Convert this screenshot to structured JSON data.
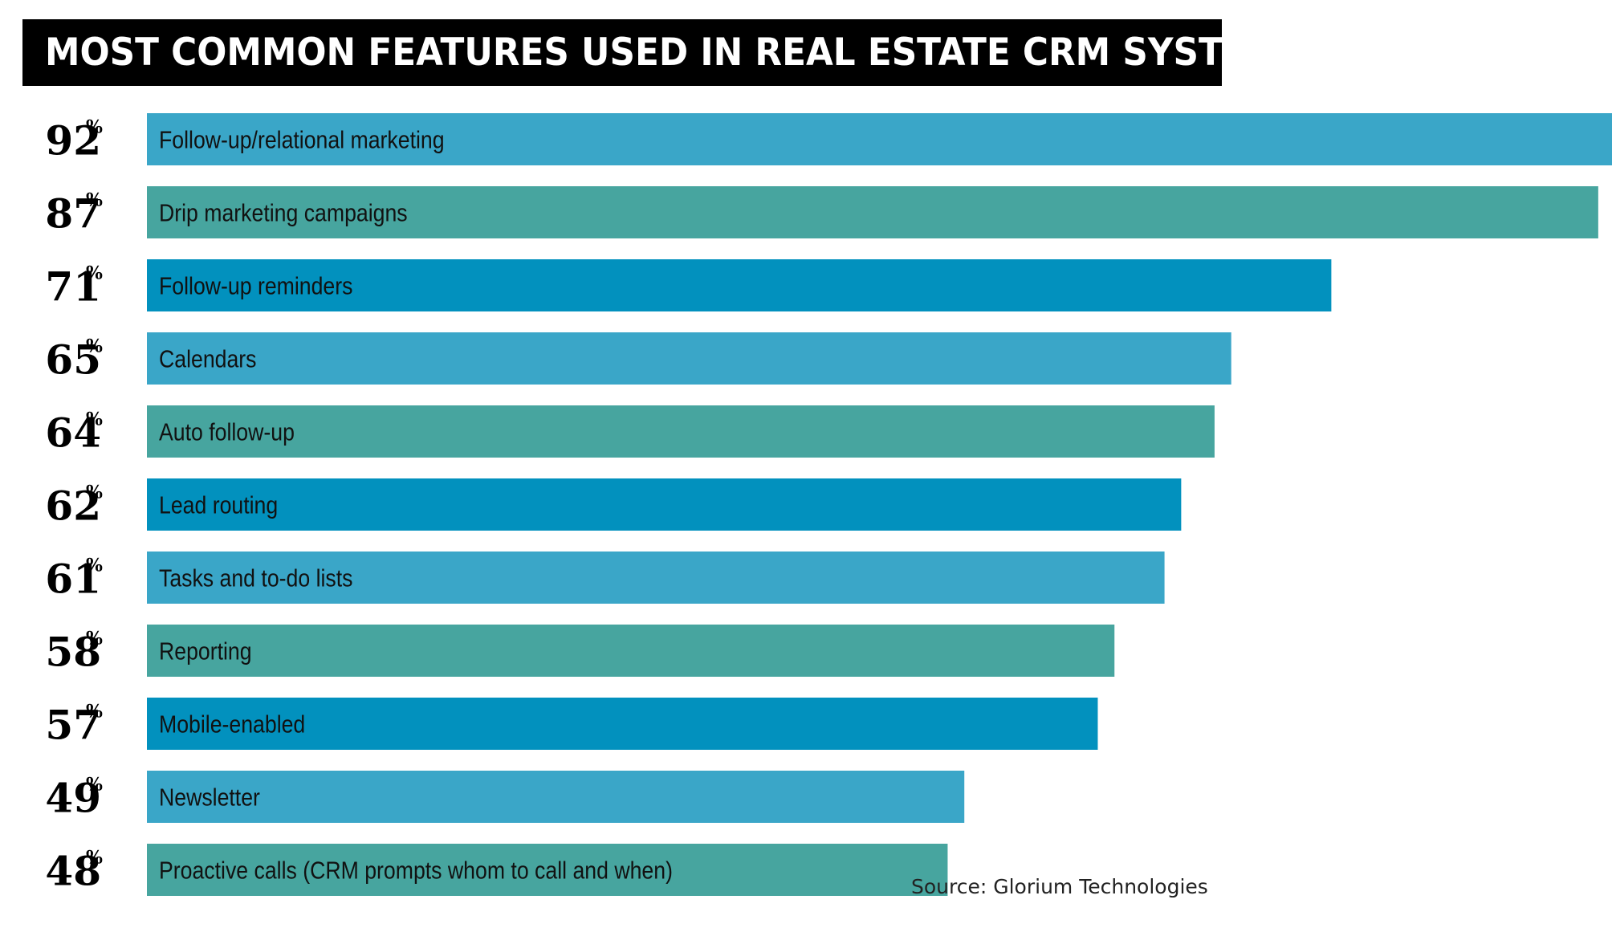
{
  "title": "MOST COMMON FEATURES USED IN REAL ESTATE CRM SYSTEMS",
  "source": "Source: Glorium Technologies",
  "percent_sign": "%",
  "colors": {
    "light_blue": "#3AA6C8",
    "teal": "#47A59F",
    "dark_blue": "#0291BE",
    "title_bg": "#000000",
    "title_text": "#FFFFFF",
    "label_text": "#111111"
  },
  "chart_data": {
    "type": "bar",
    "orientation": "horizontal",
    "title": "MOST COMMON FEATURES USED IN REAL ESTATE CRM SYSTEMS",
    "xlabel": "",
    "ylabel": "",
    "xlim": [
      0,
      100
    ],
    "grid": false,
    "legend": "none",
    "value_suffix": "%",
    "categories": [
      "Follow-up/relational marketing",
      "Drip marketing campaigns",
      "Follow-up reminders",
      "Calendars",
      "Auto follow-up",
      "Lead routing",
      "Tasks and to-do lists",
      "Reporting",
      "Mobile-enabled",
      "Newsletter",
      "Proactive calls (CRM prompts whom to call and when)"
    ],
    "values": [
      92,
      87,
      71,
      65,
      64,
      62,
      61,
      58,
      57,
      49,
      48
    ],
    "bar_colors": [
      "#3AA6C8",
      "#47A59F",
      "#0291BE",
      "#3AA6C8",
      "#47A59F",
      "#0291BE",
      "#3AA6C8",
      "#47A59F",
      "#0291BE",
      "#3AA6C8",
      "#47A59F"
    ]
  }
}
